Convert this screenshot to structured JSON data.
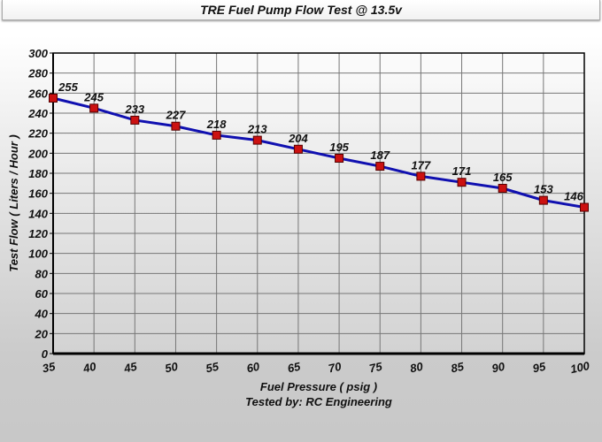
{
  "chart_data": {
    "type": "line",
    "title": "TRE Fuel Pump Flow Test @ 13.5v",
    "xlabel": "Fuel Pressure ( psig )",
    "subtitle": "Tested by: RC Engineering",
    "ylabel": "Test Flow ( Liters / Hour )",
    "x": [
      35,
      40,
      45,
      50,
      55,
      60,
      65,
      70,
      75,
      80,
      85,
      90,
      95,
      100
    ],
    "series": [
      {
        "values": [
          255,
          245,
          233,
          227,
          218,
          213,
          204,
          195,
          187,
          177,
          171,
          165,
          153,
          146
        ],
        "color": "#1010b0",
        "marker_color": "#cc1111"
      }
    ],
    "xlim": [
      35,
      100
    ],
    "ylim": [
      0,
      300
    ],
    "xticks": [
      35,
      40,
      45,
      50,
      55,
      60,
      65,
      70,
      75,
      80,
      85,
      90,
      95,
      100
    ],
    "yticks": [
      0,
      20,
      40,
      60,
      80,
      100,
      120,
      140,
      160,
      180,
      200,
      220,
      240,
      260,
      280,
      300
    ],
    "grid": true,
    "data_labels": true
  }
}
